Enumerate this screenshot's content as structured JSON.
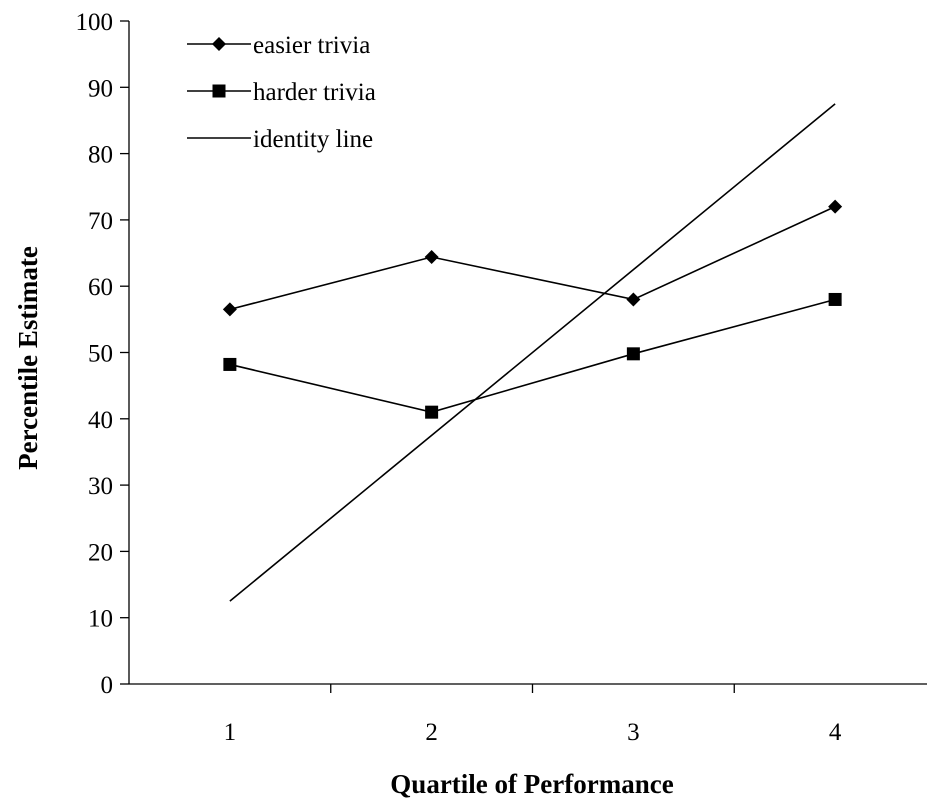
{
  "chart_data": {
    "type": "line",
    "title": "",
    "xlabel": "Quartile of Performance",
    "ylabel": "Percentile Estimate",
    "categories": [
      "1",
      "2",
      "3",
      "4"
    ],
    "ylim": [
      0,
      100
    ],
    "yticks": [
      "0",
      "10",
      "20",
      "30",
      "40",
      "50",
      "60",
      "70",
      "80",
      "90",
      "100"
    ],
    "grid": false,
    "legend_position": "top-left",
    "series": [
      {
        "name": "easier trivia",
        "marker": "diamond",
        "color": "#000000",
        "values": [
          56.5,
          64.4,
          58.0,
          72.0
        ]
      },
      {
        "name": "harder trivia",
        "marker": "square",
        "color": "#000000",
        "values": [
          48.2,
          41.0,
          49.8,
          58.0
        ]
      },
      {
        "name": "identity line",
        "marker": "none",
        "color": "#000000",
        "values": [
          12.5,
          37.5,
          62.5,
          87.5
        ]
      }
    ]
  }
}
